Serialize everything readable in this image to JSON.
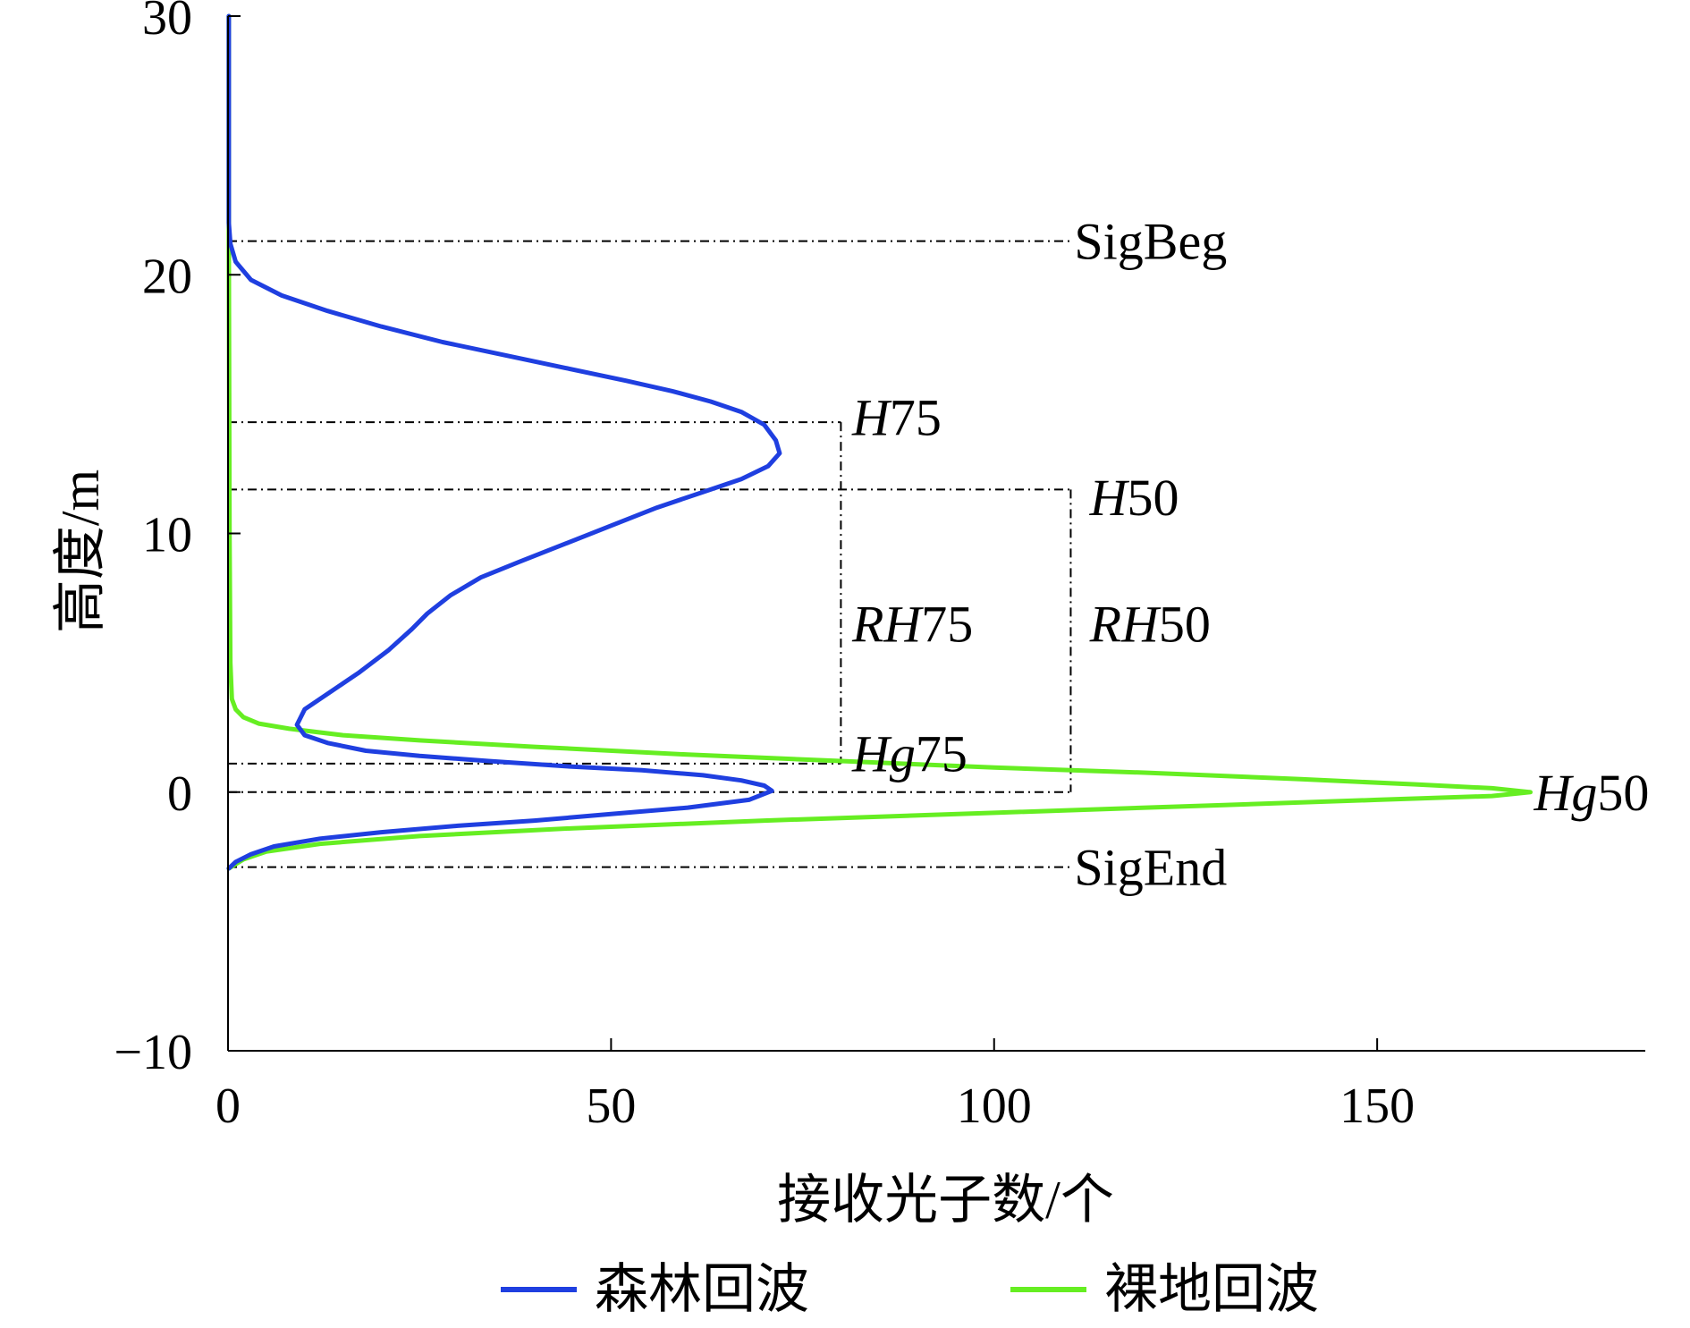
{
  "chart_data": {
    "type": "line",
    "xlabel": "接收光子数/个",
    "ylabel": "高度/m",
    "xlim": [
      0,
      185
    ],
    "ylim": [
      -10,
      30
    ],
    "xticks": [
      0,
      50,
      100,
      150
    ],
    "yticks": [
      -10,
      0,
      10,
      20,
      30
    ],
    "xtick_labels": [
      "0",
      "50",
      "100",
      "150"
    ],
    "ytick_labels": [
      "−10",
      "0",
      "10",
      "20",
      "30"
    ],
    "grid": false,
    "legend_position": "bottom",
    "series": [
      {
        "name": "森林回波",
        "color": "#1f3fe0",
        "points": [
          [
            0.1,
            30
          ],
          [
            0.1,
            22
          ],
          [
            0.3,
            21.2
          ],
          [
            1,
            20.5
          ],
          [
            3,
            19.8
          ],
          [
            7,
            19.2
          ],
          [
            13,
            18.6
          ],
          [
            20,
            18
          ],
          [
            28,
            17.4
          ],
          [
            36,
            16.9
          ],
          [
            44,
            16.4
          ],
          [
            52,
            15.9
          ],
          [
            58,
            15.5
          ],
          [
            63,
            15.1
          ],
          [
            67,
            14.7
          ],
          [
            70,
            14.2
          ],
          [
            71.5,
            13.6
          ],
          [
            72,
            13.1
          ],
          [
            70.5,
            12.6
          ],
          [
            67,
            12.1
          ],
          [
            62,
            11.6
          ],
          [
            56,
            11.0
          ],
          [
            50,
            10.3
          ],
          [
            44,
            9.6
          ],
          [
            38,
            8.9
          ],
          [
            33,
            8.3
          ],
          [
            29,
            7.6
          ],
          [
            26,
            6.9
          ],
          [
            24,
            6.3
          ],
          [
            21,
            5.5
          ],
          [
            17,
            4.6
          ],
          [
            13,
            3.8
          ],
          [
            10,
            3.2
          ],
          [
            9,
            2.6
          ],
          [
            10,
            2.2
          ],
          [
            13,
            1.9
          ],
          [
            18,
            1.6
          ],
          [
            25,
            1.4
          ],
          [
            34,
            1.2
          ],
          [
            44,
            1.0
          ],
          [
            54,
            0.85
          ],
          [
            62,
            0.65
          ],
          [
            67,
            0.45
          ],
          [
            70,
            0.25
          ],
          [
            71,
            0.05
          ],
          [
            68,
            -0.3
          ],
          [
            60,
            -0.6
          ],
          [
            50,
            -0.85
          ],
          [
            40,
            -1.1
          ],
          [
            30,
            -1.3
          ],
          [
            20,
            -1.55
          ],
          [
            12,
            -1.8
          ],
          [
            6,
            -2.1
          ],
          [
            3,
            -2.4
          ],
          [
            1,
            -2.7
          ],
          [
            0.1,
            -2.95
          ]
        ]
      },
      {
        "name": "裸地回波",
        "color": "#66ee22",
        "points": [
          [
            0.1,
            30
          ],
          [
            0.1,
            21
          ],
          [
            0.2,
            10
          ],
          [
            0.3,
            5
          ],
          [
            0.5,
            3.6
          ],
          [
            1,
            3.2
          ],
          [
            2,
            2.9
          ],
          [
            4,
            2.65
          ],
          [
            8,
            2.45
          ],
          [
            15,
            2.2
          ],
          [
            25,
            2.0
          ],
          [
            40,
            1.75
          ],
          [
            60,
            1.45
          ],
          [
            80,
            1.2
          ],
          [
            100,
            0.95
          ],
          [
            120,
            0.75
          ],
          [
            140,
            0.5
          ],
          [
            155,
            0.3
          ],
          [
            165,
            0.15
          ],
          [
            170,
            0.0
          ],
          [
            165,
            -0.15
          ],
          [
            150,
            -0.3
          ],
          [
            130,
            -0.5
          ],
          [
            100,
            -0.8
          ],
          [
            70,
            -1.1
          ],
          [
            45,
            -1.4
          ],
          [
            25,
            -1.7
          ],
          [
            12,
            -2.0
          ],
          [
            5,
            -2.3
          ],
          [
            2,
            -2.6
          ],
          [
            0.1,
            -2.95
          ]
        ]
      }
    ],
    "reference_lines": [
      {
        "name": "SigBeg",
        "y": 21.3,
        "x_end": 110
      },
      {
        "name": "H75",
        "y": 14.3,
        "x_end": 80
      },
      {
        "name": "H50",
        "y": 11.7,
        "x_end": 110
      },
      {
        "name": "Hg75",
        "y": 1.1,
        "x_end": 80
      },
      {
        "name": "Hg50",
        "y": 0.0,
        "x_end": 110
      },
      {
        "name": "SigEnd",
        "y": -2.9,
        "x_end": 110
      }
    ],
    "bracket_lines": [
      {
        "name": "RH75",
        "x": 80,
        "y_top": 14.3,
        "y_bottom": 1.1
      },
      {
        "name": "RH50",
        "x": 110,
        "y_top": 11.7,
        "y_bottom": 0.0
      }
    ],
    "annotations": [
      {
        "id": "SigBeg",
        "x": 110,
        "y": 21.3,
        "parts": [
          {
            "text": "SigBeg",
            "italic": false
          }
        ]
      },
      {
        "id": "H75",
        "x": 81,
        "y": 14.5,
        "parts": [
          {
            "text": "H",
            "italic": true
          },
          {
            "text": "75",
            "italic": false
          }
        ]
      },
      {
        "id": "H50",
        "x": 112,
        "y": 11.4,
        "parts": [
          {
            "text": "H",
            "italic": true
          },
          {
            "text": "50",
            "italic": false
          }
        ]
      },
      {
        "id": "RH75",
        "x": 81,
        "y": 6.5,
        "parts": [
          {
            "text": "RH",
            "italic": true
          },
          {
            "text": "75",
            "italic": false
          }
        ]
      },
      {
        "id": "RH50",
        "x": 112,
        "y": 6.5,
        "parts": [
          {
            "text": "RH",
            "italic": true
          },
          {
            "text": "50",
            "italic": false
          }
        ]
      },
      {
        "id": "Hg75",
        "x": 81,
        "y": 1.5,
        "parts": [
          {
            "text": "Hg",
            "italic": true
          },
          {
            "text": "75",
            "italic": false
          }
        ]
      },
      {
        "id": "Hg50",
        "x": 170,
        "y": 0.0,
        "parts": [
          {
            "text": "Hg",
            "italic": true
          },
          {
            "text": "50",
            "italic": false
          }
        ]
      },
      {
        "id": "SigEnd",
        "x": 110,
        "y": -2.9,
        "parts": [
          {
            "text": "SigEnd",
            "italic": false
          }
        ]
      }
    ]
  }
}
